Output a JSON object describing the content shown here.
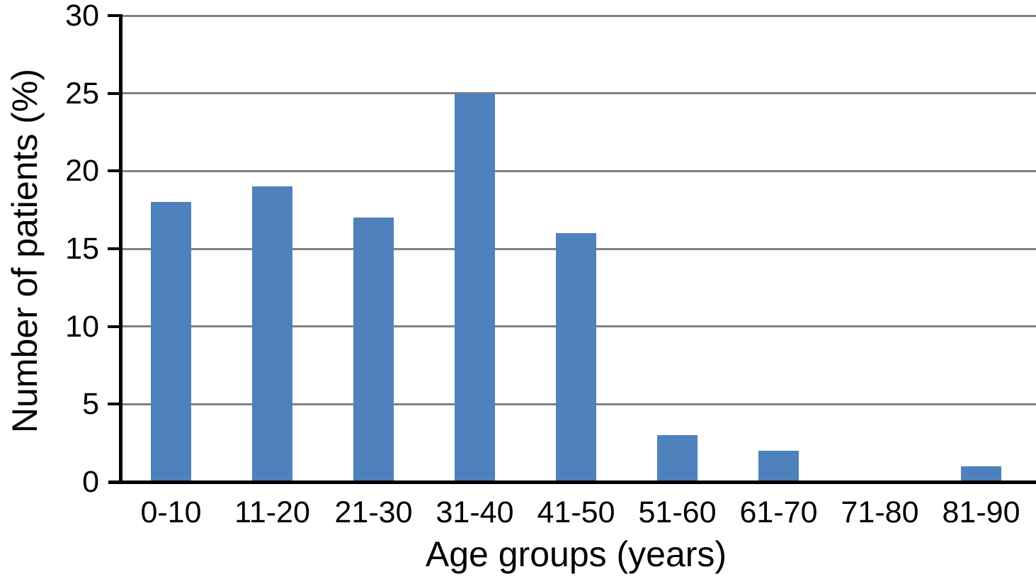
{
  "chart_data": {
    "type": "bar",
    "title": "",
    "categories": [
      "0-10",
      "11-20",
      "21-30",
      "31-40",
      "41-50",
      "51-60",
      "61-70",
      "71-80",
      "81-90"
    ],
    "values": [
      18,
      19,
      17,
      25,
      16,
      3,
      2,
      0,
      1
    ],
    "xlabel": "Age groups (years)",
    "ylabel": "Number of patients (%)",
    "ylim": [
      0,
      30
    ],
    "yticks": [
      0,
      5,
      10,
      15,
      20,
      25,
      30
    ],
    "grid": true,
    "legend": "none",
    "bar_color": "#4f81bd",
    "gridline_color": "#808080",
    "axis_color": "#000000",
    "text_color": "#000000"
  }
}
